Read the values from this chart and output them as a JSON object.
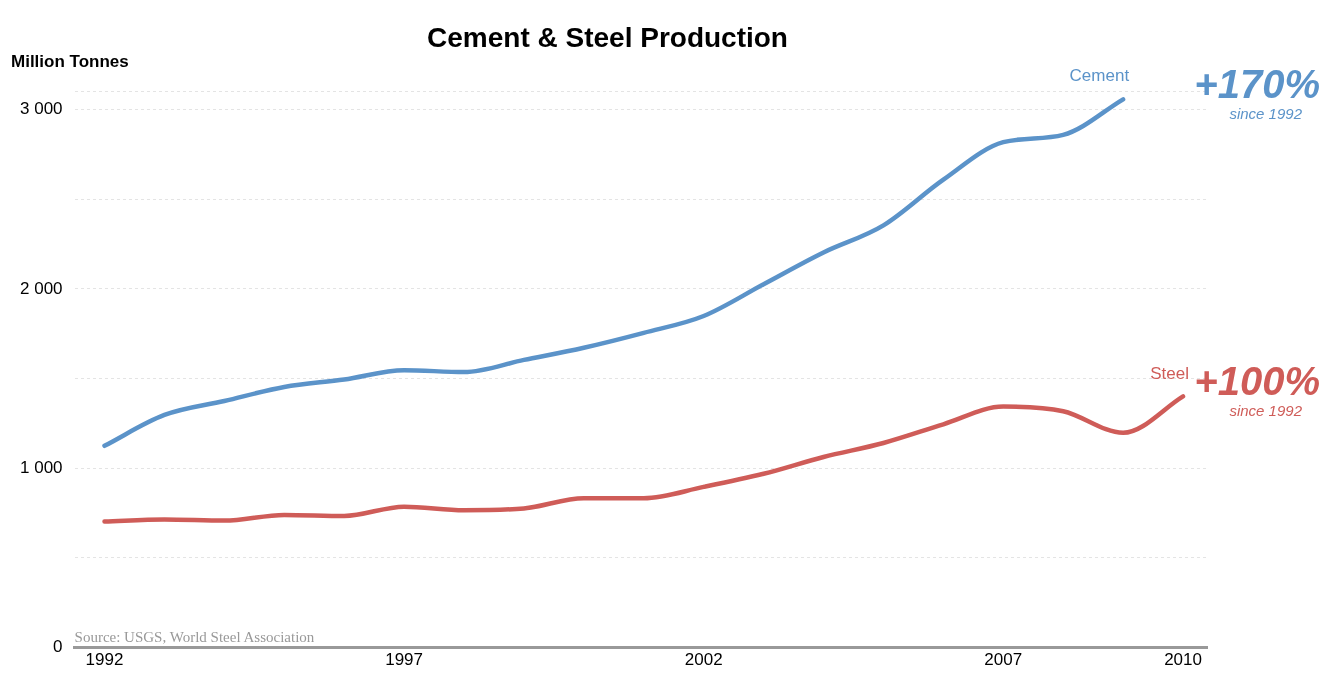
{
  "chart_data": {
    "type": "line",
    "title": "Cement & Steel Production",
    "ylabel": "Million Tonnes",
    "xlim": [
      1991.5,
      2010.4
    ],
    "xticks": [
      1992,
      1997,
      2002,
      2007,
      2010
    ],
    "ylim": [
      0,
      3100
    ],
    "yticks": [
      {
        "value": 0,
        "label": "0"
      },
      {
        "value": 500,
        "label": null
      },
      {
        "value": 1000,
        "label": "1 000"
      },
      {
        "value": 1500,
        "label": null
      },
      {
        "value": 2000,
        "label": "2 000"
      },
      {
        "value": 2500,
        "label": null
      },
      {
        "value": 3000,
        "label": "3 000"
      },
      {
        "value": 3100,
        "label": null
      }
    ],
    "grid": "y",
    "legend": false,
    "marker": "none",
    "line_style": "solid",
    "series": [
      {
        "name": "Cement",
        "color": "#5b93c9",
        "x": [
          1992,
          1993,
          1994,
          1995,
          1996,
          1997,
          1998,
          1999,
          2000,
          2001,
          2002,
          2003,
          2004,
          2005,
          2006,
          2007,
          2008,
          2009
        ],
        "values": [
          1125,
          1297,
          1375,
          1453,
          1495,
          1547,
          1536,
          1604,
          1672,
          1755,
          1849,
          2026,
          2203,
          2354,
          2609,
          2818,
          2859,
          3057
        ]
      },
      {
        "name": "Steel",
        "color": "#cf5c58",
        "x": [
          1992,
          1993,
          1994,
          1995,
          1996,
          1997,
          1998,
          1999,
          2000,
          2001,
          2002,
          2003,
          2004,
          2005,
          2006,
          2007,
          2008,
          2009,
          2010
        ],
        "values": [
          703,
          714,
          708,
          740,
          734,
          786,
          766,
          776,
          833,
          833,
          896,
          969,
          1063,
          1141,
          1245,
          1344,
          1318,
          1198,
          1401
        ]
      }
    ],
    "annotations": [
      "+170%",
      "since 1992",
      "+100%",
      "since 1992",
      "Source: USGS, World Steel Association"
    ]
  }
}
